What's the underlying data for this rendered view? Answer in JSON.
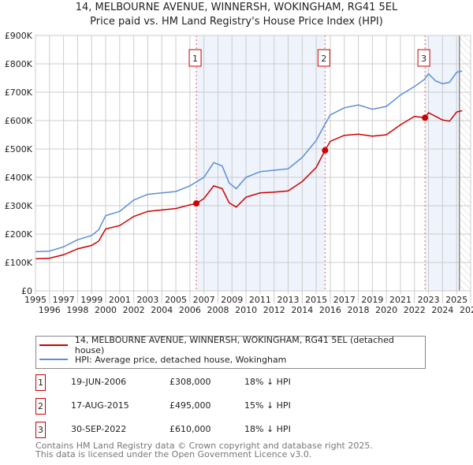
{
  "title": "14, MELBOURNE AVENUE, WINNERSH, WOKINGHAM, RG41 5EL",
  "subtitle": "Price paid vs. HM Land Registry's House Price Index (HPI)",
  "chart_data": {
    "type": "line",
    "xlim": [
      1995,
      2026
    ],
    "ylim": [
      0,
      900000
    ],
    "yticks": [
      0,
      100000,
      200000,
      300000,
      400000,
      500000,
      600000,
      700000,
      800000,
      900000
    ],
    "ytick_labels": [
      "£0",
      "£100K",
      "£200K",
      "£300K",
      "£400K",
      "£500K",
      "£600K",
      "£700K",
      "£800K",
      "£900K"
    ],
    "xticks": [
      1995,
      1996,
      1997,
      1998,
      1999,
      2000,
      2001,
      2002,
      2003,
      2004,
      2005,
      2006,
      2007,
      2008,
      2009,
      2010,
      2011,
      2012,
      2013,
      2014,
      2015,
      2016,
      2017,
      2018,
      2019,
      2020,
      2021,
      2022,
      2023,
      2024,
      2025,
      2026
    ],
    "grid": true,
    "legend_placement": "below",
    "series": [
      {
        "name": "14, MELBOURNE AVENUE, WINNERSH, WOKINGHAM, RG41 5EL (detached house)",
        "color": "#cc0000",
        "x": [
          1995,
          1996,
          1997,
          1998,
          1999,
          1999.5,
          2000,
          2001,
          2002,
          2003,
          2004,
          2005,
          2006,
          2006.46,
          2007,
          2007.7,
          2008.3,
          2008.8,
          2009.3,
          2010,
          2011,
          2012,
          2013,
          2014,
          2015,
          2015.63,
          2016,
          2017,
          2018,
          2019,
          2020,
          2021,
          2022,
          2022.75,
          2023,
          2024,
          2024.5,
          2025,
          2025.4
        ],
        "y": [
          113000,
          115000,
          127000,
          148000,
          160000,
          175000,
          218000,
          230000,
          262000,
          280000,
          285000,
          290000,
          303000,
          308000,
          325000,
          370000,
          360000,
          310000,
          295000,
          330000,
          345000,
          348000,
          352000,
          385000,
          435000,
          495000,
          527000,
          548000,
          552000,
          545000,
          550000,
          585000,
          615000,
          610000,
          628000,
          602000,
          598000,
          630000,
          635000
        ]
      },
      {
        "name": "HPI: Average price, detached house, Wokingham",
        "color": "#5b8fd6",
        "x": [
          1995,
          1996,
          1997,
          1998,
          1999,
          1999.5,
          2000,
          2001,
          2002,
          2003,
          2004,
          2005,
          2006,
          2007,
          2007.7,
          2008.3,
          2008.8,
          2009.3,
          2010,
          2011,
          2012,
          2013,
          2014,
          2015,
          2015.6,
          2016,
          2017,
          2018,
          2019,
          2020,
          2021,
          2022,
          2022.7,
          2023,
          2023.5,
          2024,
          2024.5,
          2025,
          2025.4
        ],
        "y": [
          138000,
          140000,
          155000,
          180000,
          195000,
          215000,
          265000,
          280000,
          320000,
          340000,
          345000,
          350000,
          370000,
          400000,
          452000,
          440000,
          380000,
          360000,
          400000,
          420000,
          425000,
          430000,
          470000,
          530000,
          585000,
          620000,
          645000,
          655000,
          640000,
          650000,
          690000,
          720000,
          745000,
          765000,
          740000,
          730000,
          735000,
          770000,
          775000
        ]
      }
    ],
    "sales": [
      {
        "label": "1",
        "x": 2006.46,
        "y": 308000,
        "date": "19-JUN-2006",
        "price": "£308,000",
        "hpi": "18% ↓ HPI"
      },
      {
        "label": "2",
        "x": 2015.63,
        "y": 495000,
        "date": "17-AUG-2015",
        "price": "£495,000",
        "hpi": "15% ↓ HPI"
      },
      {
        "label": "3",
        "x": 2022.75,
        "y": 610000,
        "date": "30-SEP-2022",
        "price": "£610,000",
        "hpi": "18% ↓ HPI"
      }
    ],
    "forecast_start": 2025.2
  },
  "footer": {
    "line1": "Contains HM Land Registry data © Crown copyright and database right 2025.",
    "line2": "This data is licensed under the Open Government Licence v3.0."
  }
}
